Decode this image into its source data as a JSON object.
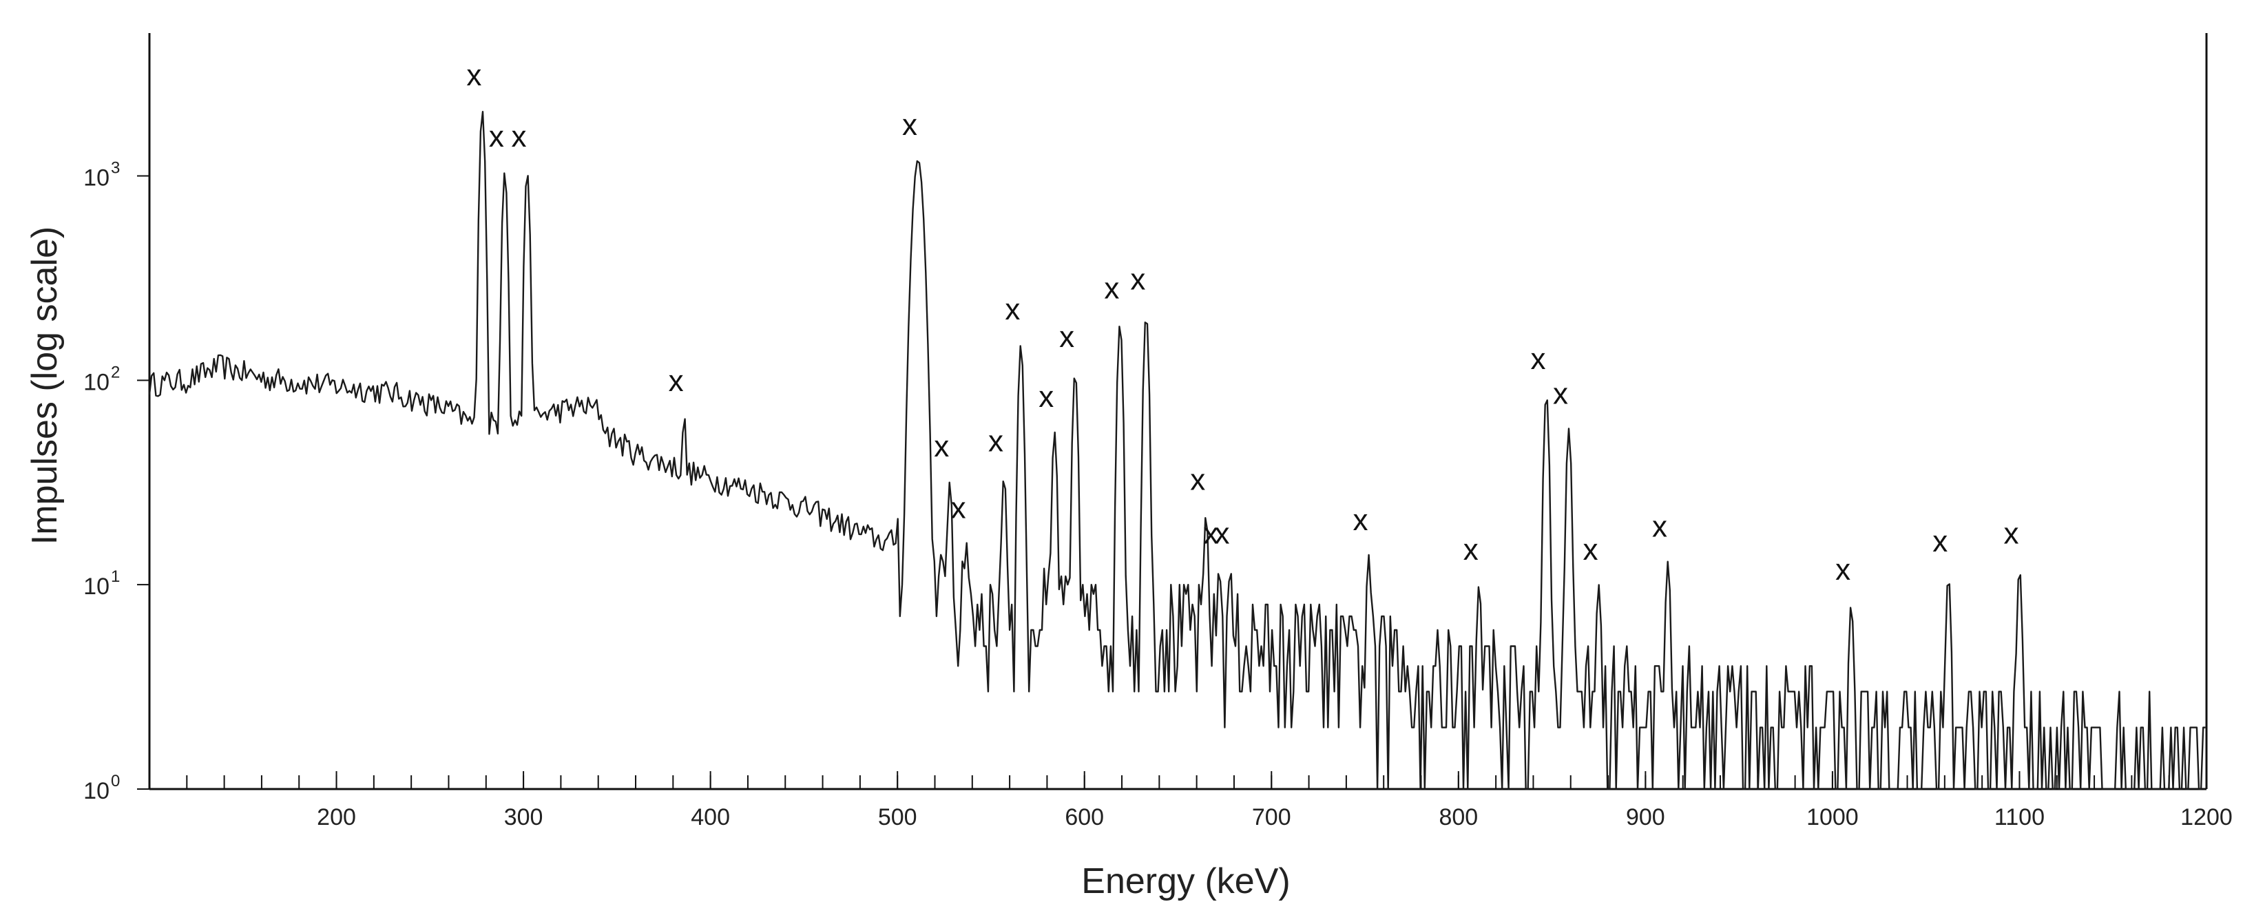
{
  "chart_data": {
    "type": "line",
    "title": "",
    "xlabel": "Energy (keV)",
    "ylabel": "Impulses (log scale)",
    "xlim": [
      100,
      1200
    ],
    "ylim": [
      1,
      5000
    ],
    "yscale": "log",
    "x_ticks": [
      200,
      300,
      400,
      500,
      600,
      700,
      800,
      900,
      1000,
      1100,
      1200
    ],
    "y_ticks": [
      {
        "base": "10",
        "exp": "0",
        "value": 1
      },
      {
        "base": "10",
        "exp": "1",
        "value": 10
      },
      {
        "base": "10",
        "exp": "2",
        "value": 100
      },
      {
        "base": "10",
        "exp": "3",
        "value": 1000
      }
    ],
    "peak_marker": "x",
    "peaks": [
      {
        "energy": 278,
        "counts": 2100
      },
      {
        "energy": 290,
        "counts": 1050
      },
      {
        "energy": 302,
        "counts": 1050
      },
      {
        "energy": 386,
        "counts": 67
      },
      {
        "energy": 511,
        "counts": 1200
      },
      {
        "energy": 528,
        "counts": 32
      },
      {
        "energy": 537,
        "counts": 16
      },
      {
        "energy": 557,
        "counts": 34
      },
      {
        "energy": 566,
        "counts": 150
      },
      {
        "energy": 584,
        "counts": 56
      },
      {
        "energy": 595,
        "counts": 110
      },
      {
        "energy": 619,
        "counts": 190
      },
      {
        "energy": 633,
        "counts": 210
      },
      {
        "energy": 665,
        "counts": 22
      },
      {
        "energy": 672,
        "counts": 12
      },
      {
        "energy": 678,
        "counts": 12
      },
      {
        "energy": 752,
        "counts": 14
      },
      {
        "energy": 811,
        "counts": 10
      },
      {
        "energy": 847,
        "counts": 86
      },
      {
        "energy": 859,
        "counts": 58
      },
      {
        "energy": 875,
        "counts": 10
      },
      {
        "energy": 912,
        "counts": 13
      },
      {
        "energy": 1010,
        "counts": 8
      },
      {
        "energy": 1062,
        "counts": 11
      },
      {
        "energy": 1100,
        "counts": 12
      }
    ],
    "background": [
      [
        100,
        96
      ],
      [
        120,
        100
      ],
      [
        138,
        118
      ],
      [
        160,
        103
      ],
      [
        200,
        94
      ],
      [
        230,
        87
      ],
      [
        260,
        72
      ],
      [
        272,
        62
      ],
      [
        286,
        62
      ],
      [
        300,
        64
      ],
      [
        315,
        70
      ],
      [
        330,
        75
      ],
      [
        340,
        72
      ],
      [
        345,
        55
      ],
      [
        360,
        44
      ],
      [
        380,
        38
      ],
      [
        400,
        33
      ],
      [
        430,
        28
      ],
      [
        460,
        22
      ],
      [
        480,
        18
      ],
      [
        495,
        16
      ],
      [
        505,
        18
      ],
      [
        520,
        9
      ],
      [
        540,
        8
      ],
      [
        560,
        7.5
      ],
      [
        600,
        7
      ],
      [
        640,
        6.5
      ],
      [
        680,
        5.5
      ],
      [
        720,
        5
      ],
      [
        760,
        4.2
      ],
      [
        800,
        3.8
      ],
      [
        840,
        3.4
      ],
      [
        880,
        3.2
      ],
      [
        900,
        3
      ],
      [
        920,
        2.8
      ],
      [
        960,
        2.4
      ],
      [
        1000,
        2.2
      ],
      [
        1050,
        1.9
      ],
      [
        1100,
        1.8
      ],
      [
        1150,
        1.6
      ],
      [
        1200,
        1.5
      ]
    ]
  }
}
